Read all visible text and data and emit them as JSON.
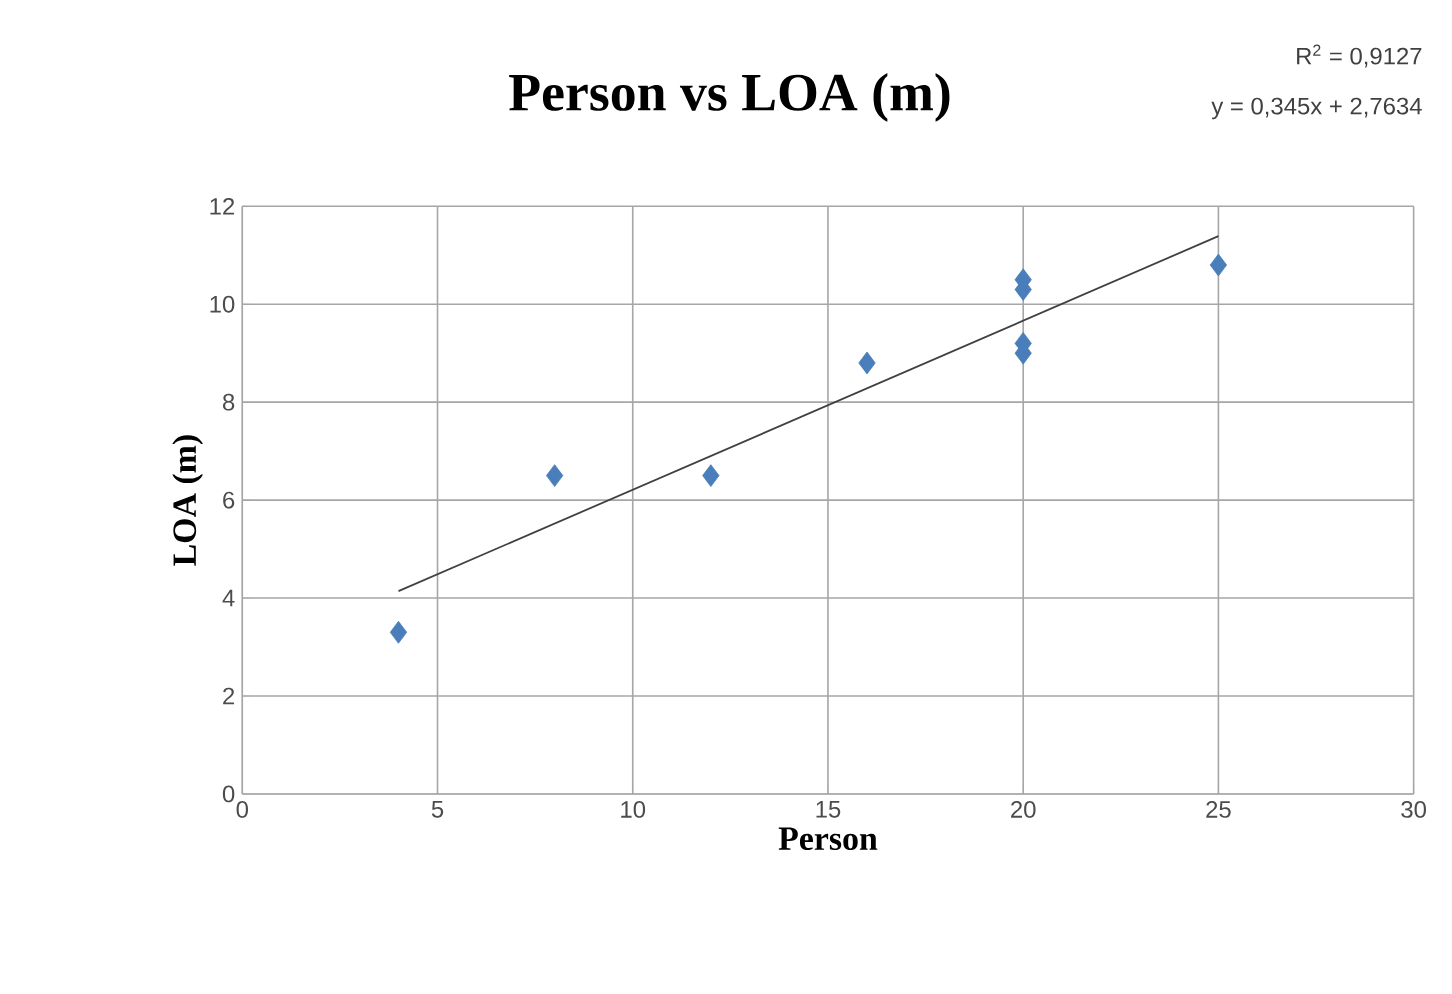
{
  "chart_data": {
    "type": "scatter",
    "title": "Person vs LOA (m)",
    "xlabel": "Person",
    "ylabel": "LOA (m)",
    "annotations": [
      "R$^{2}$ = 0,9127",
      "y = 0,345x + 2,7634"
    ],
    "series": [
      {
        "color": "#4a7ebb",
        "marker": "diamond",
        "x": [
          4,
          8,
          12,
          16,
          20,
          20,
          20,
          20,
          25
        ],
        "values": [
          3.3,
          6.5,
          6.5,
          8.8,
          10.5,
          10.3,
          9.2,
          9.0,
          10.8
        ]
      },
      {
        "type": "line",
        "color": "#404040",
        "marker": "none",
        "line_style": "solid",
        "x": [
          4,
          25
        ],
        "values": [
          4.14,
          11.39
        ]
      }
    ],
    "xlim": [
      0,
      30
    ],
    "xticks": [
      0,
      5,
      10,
      15,
      20,
      25,
      30
    ],
    "ylim": [
      0,
      12
    ],
    "yticks": [
      0,
      2,
      4,
      6,
      8,
      10,
      12
    ],
    "grid": true
  }
}
